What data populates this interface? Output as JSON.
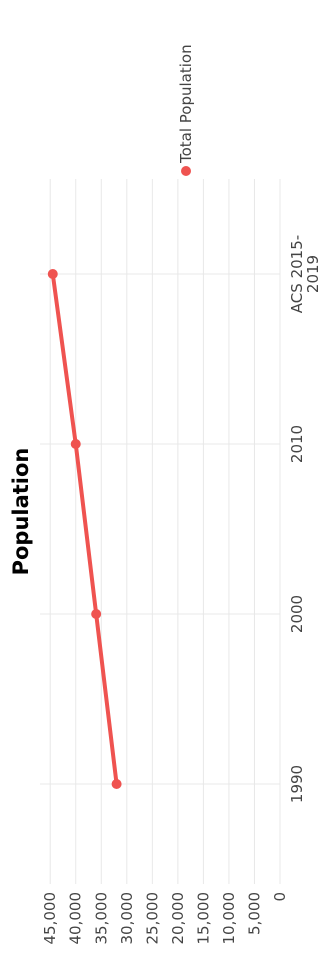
{
  "chart_data": {
    "type": "line",
    "title": "Population",
    "categories": [
      "1990",
      "2000",
      "2010",
      "ACS 2015-2019"
    ],
    "category_lines": [
      [
        "1990"
      ],
      [
        "2000"
      ],
      [
        "2010"
      ],
      [
        "ACS 2015-",
        "2019"
      ]
    ],
    "series": [
      {
        "name": "Total Population",
        "values": [
          32000,
          36000,
          40000,
          44500
        ]
      }
    ],
    "y_ticks": [
      0,
      5000,
      10000,
      15000,
      20000,
      25000,
      30000,
      35000,
      40000,
      45000
    ],
    "y_tick_labels": [
      "0",
      "5,000",
      "10,000",
      "15,000",
      "20,000",
      "25,000",
      "30,000",
      "35,000",
      "40,000",
      "45,000"
    ],
    "ylim": [
      0,
      47000
    ],
    "xlabel": "",
    "ylabel": "",
    "grid": true,
    "legend_position": "top-right",
    "colors": {
      "series": "#ef5350",
      "grid": "#e8e8e8",
      "text": "#444444"
    }
  }
}
